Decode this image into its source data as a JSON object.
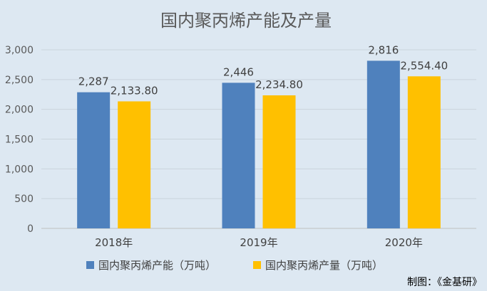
{
  "chart_data": {
    "type": "bar",
    "title": "国内聚丙烯产能及产量",
    "categories": [
      "2018年",
      "2019年",
      "2020年"
    ],
    "series": [
      {
        "name": "国内聚丙烯产能（万吨）",
        "values": [
          2287,
          2446,
          2816
        ],
        "labels": [
          "2,287",
          "2,446",
          "2,816"
        ],
        "color": "#4f81bd"
      },
      {
        "name": "国内聚丙烯产量（万吨）",
        "values": [
          2133.8,
          2234.8,
          2554.4
        ],
        "labels": [
          "2,133.80",
          "2,234.80",
          "2,554.40"
        ],
        "color": "#ffc000"
      }
    ],
    "ylim": [
      0,
      3000
    ],
    "yticks": [
      0,
      500,
      1000,
      1500,
      2000,
      2500,
      3000
    ],
    "ytick_labels": [
      "0",
      "500",
      "1,000",
      "1,500",
      "2,000",
      "2,500",
      "3,000"
    ],
    "grid": true,
    "legend_position": "bottom"
  },
  "source": "制图：《金基研》",
  "colors": {
    "background": "#dde8f2",
    "grid": "#c9d3dc",
    "axis": "#bfbfbf"
  }
}
